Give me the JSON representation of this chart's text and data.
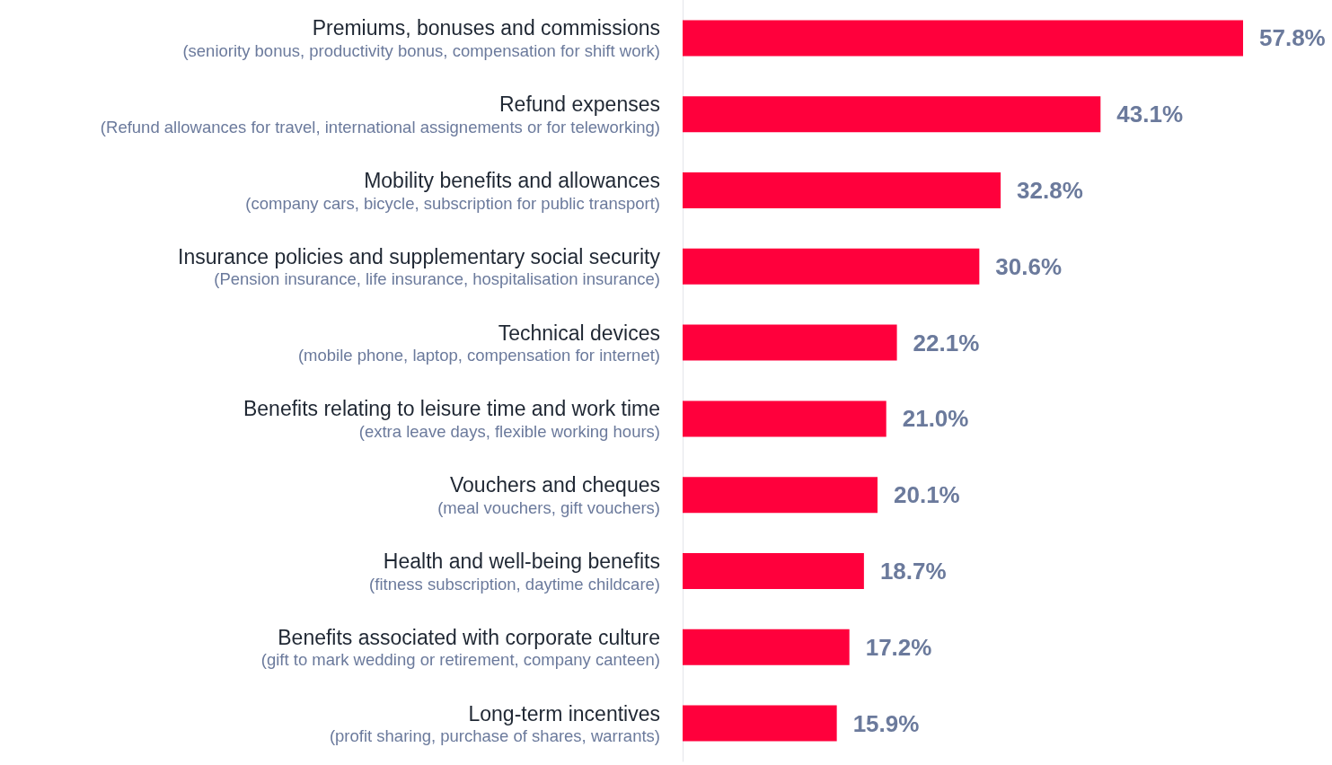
{
  "chart_data": {
    "type": "bar",
    "orientation": "horizontal",
    "categories": [
      "Premiums, bonuses and commissions\n(seniority bonus, productivity bonus, compensation for shift work)",
      "Refund expenses\n(Refund allowances for travel, international assignements or for teleworking)",
      "Mobility benefits and allowances\n(company cars, bicycle, subscription for public transport)",
      "Insurance policies and supplementary social security\n(Pension insurance, life insurance, hospitalisation insurance)",
      "Technical devices\n(mobile phone, laptop, compensation for internet)",
      "Benefits relating to leisure time and work time\n(extra leave days, flexible working hours)",
      "Vouchers and cheques\n(meal vouchers, gift vouchers)",
      "Health and well-being benefits\n(fitness subscription, daytime childcare)",
      "Benefits associated with corporate culture\n(gift to mark wedding or retirement, company canteen)",
      "Long-term incentives\n(profit sharing, purchase of shares, warrants)"
    ],
    "values": [
      57.8,
      43.1,
      32.8,
      30.6,
      22.1,
      21.0,
      20.1,
      18.7,
      17.2,
      15.9
    ],
    "value_labels": [
      "57.8%",
      "43.1%",
      "32.8%",
      "30.6%",
      "22.1%",
      "21.0%",
      "20.1%",
      "18.7%",
      "17.2%",
      "15.9%"
    ],
    "color": "#ff003c"
  }
}
